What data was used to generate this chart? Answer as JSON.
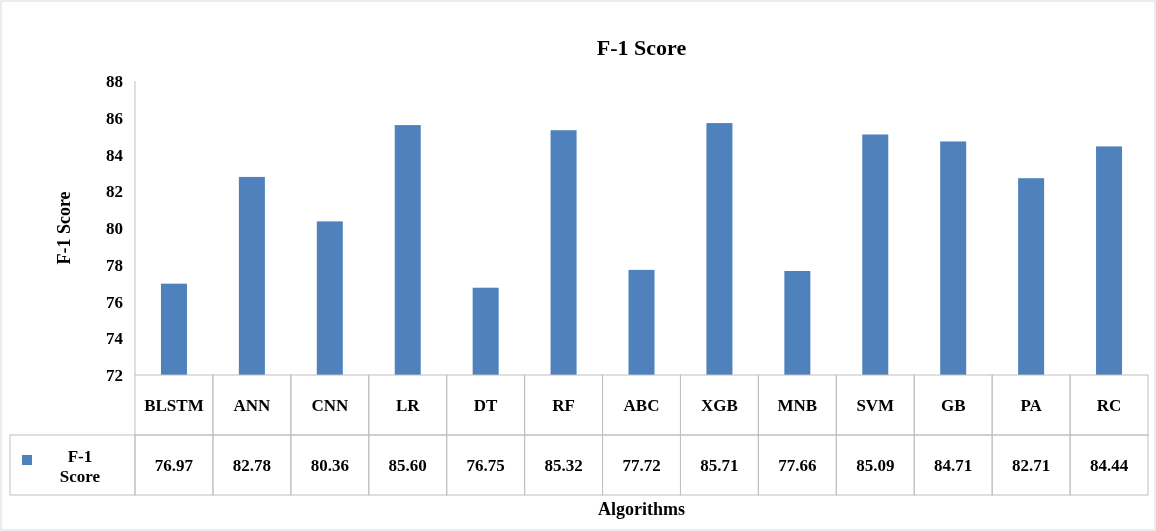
{
  "chart_data": {
    "type": "bar",
    "title": "F-1 Score",
    "xlabel": "Algorithms",
    "ylabel": "F-1 Score",
    "categories": [
      "BLSTM",
      "ANN",
      "CNN",
      "LR",
      "DT",
      "RF",
      "ABC",
      "XGB",
      "MNB",
      "SVM",
      "GB",
      "PA",
      "RC"
    ],
    "series": [
      {
        "name": "F-1 Score",
        "color": "#4f81bd",
        "values": [
          76.97,
          82.78,
          80.36,
          85.6,
          76.75,
          85.32,
          77.72,
          85.71,
          77.66,
          85.09,
          84.71,
          82.71,
          84.44
        ]
      }
    ],
    "value_labels": [
      "76.97",
      "82.78",
      "80.36",
      "85.60",
      "76.75",
      "85.32",
      "77.72",
      "85.71",
      "77.66",
      "85.09",
      "84.71",
      "82.71",
      "84.44"
    ],
    "ylim": [
      72,
      88
    ],
    "yticks": [
      72,
      74,
      76,
      78,
      80,
      82,
      84,
      86,
      88
    ],
    "legend": "bottom"
  }
}
